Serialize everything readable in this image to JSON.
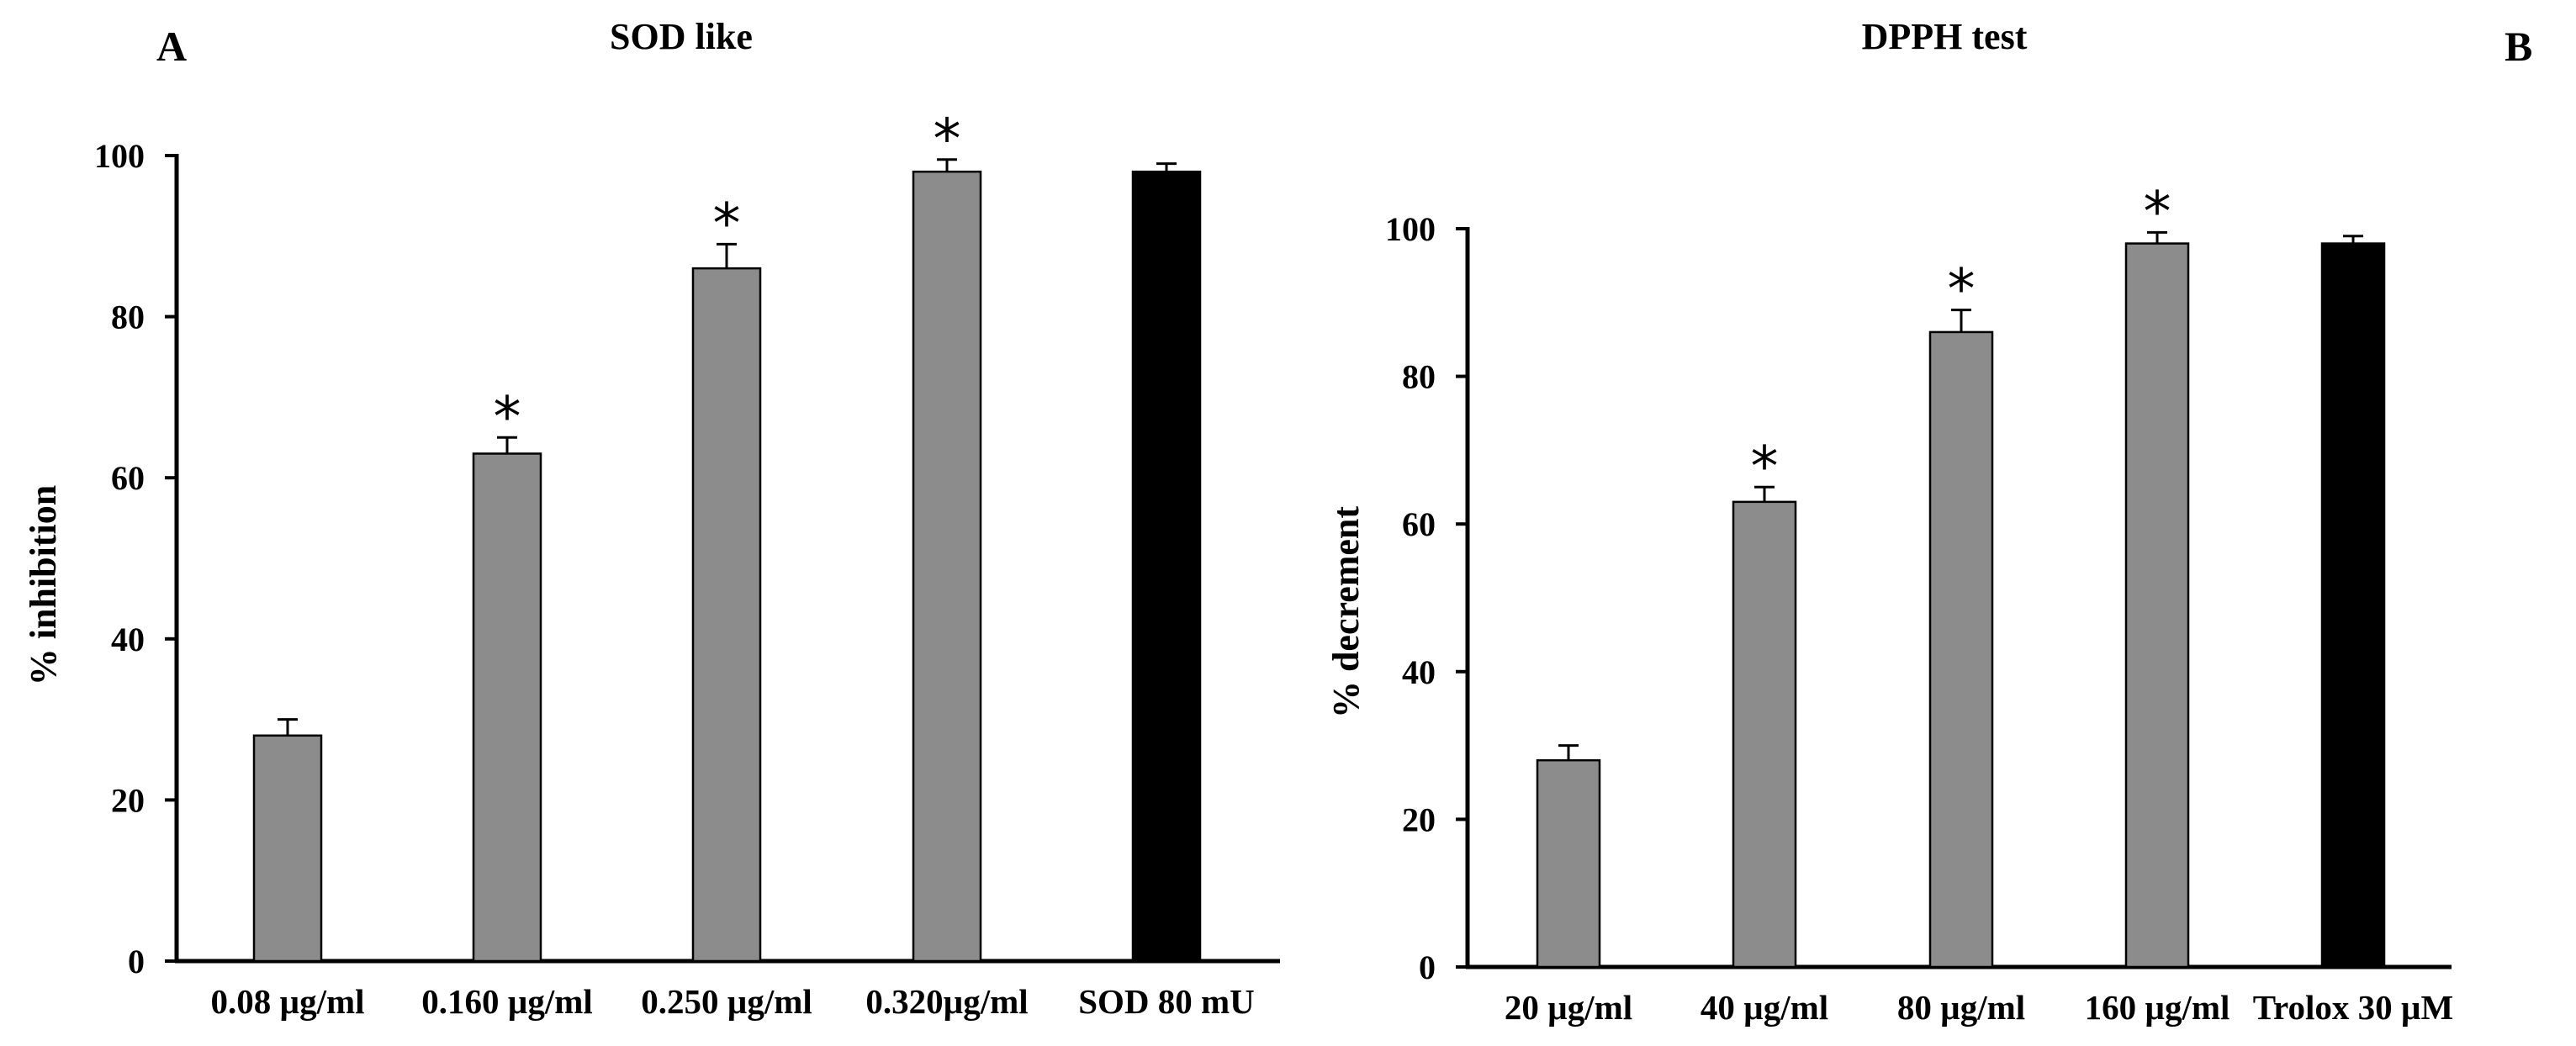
{
  "colors": {
    "sample": "#8c8c8c",
    "control": "#000000"
  },
  "chart_data": [
    {
      "type": "bar",
      "panel_label": "A",
      "title": "SOD like",
      "xlabel": "",
      "ylabel": "% inhibition",
      "ylim": [
        0,
        100
      ],
      "yticks": [
        0,
        20,
        40,
        60,
        80,
        100
      ],
      "categories": [
        "0.08 µg/ml",
        "0.160 µg/ml",
        "0.250 µg/ml",
        "0.320µg/ml",
        "SOD 80 mU"
      ],
      "values": [
        28,
        63,
        86,
        98,
        98
      ],
      "errors": [
        2,
        2,
        3,
        1.5,
        1
      ],
      "significant": [
        false,
        true,
        true,
        true,
        false
      ],
      "significance_marker": "*",
      "bar_roles": [
        "sample",
        "sample",
        "sample",
        "sample",
        "control"
      ]
    },
    {
      "type": "bar",
      "panel_label": "B",
      "title": "DPPH test",
      "xlabel": "",
      "ylabel": "% decrement",
      "ylim": [
        0,
        100
      ],
      "yticks": [
        0,
        20,
        40,
        60,
        80,
        100
      ],
      "categories": [
        "20 µg/ml",
        "40 µg/ml",
        "80 µg/ml",
        "160 µg/ml",
        "Trolox 30 µM"
      ],
      "values": [
        28,
        63,
        86,
        98,
        98
      ],
      "errors": [
        2,
        2,
        3,
        1.5,
        1
      ],
      "significant": [
        false,
        true,
        true,
        true,
        false
      ],
      "significance_marker": "*",
      "bar_roles": [
        "sample",
        "sample",
        "sample",
        "sample",
        "control"
      ]
    }
  ]
}
